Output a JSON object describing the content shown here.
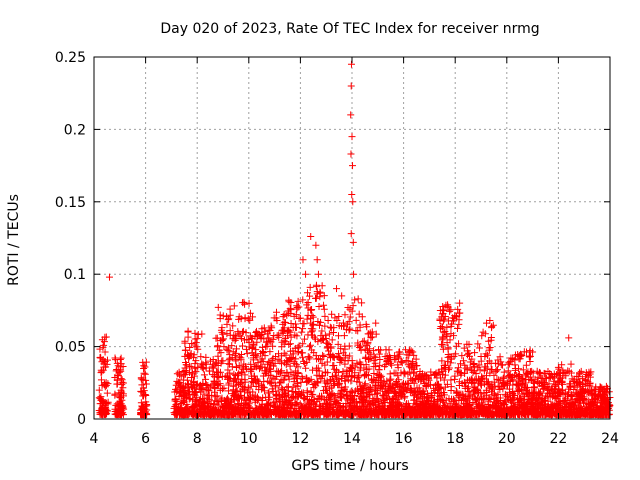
{
  "chart_data": {
    "type": "scatter",
    "title": "Day 020 of 2023, Rate Of TEC Index for receiver nrmg",
    "xlabel": "GPS time / hours",
    "ylabel": "ROTI / TECUs",
    "xlim": [
      4,
      24
    ],
    "ylim": [
      0,
      0.25
    ],
    "xticks": [
      "4",
      "6",
      "8",
      "10",
      "12",
      "14",
      "16",
      "18",
      "20",
      "22",
      "24"
    ],
    "yticks": [
      "0",
      "0.05",
      "0.1",
      "0.15",
      "0.2",
      "0.25"
    ],
    "grid": true,
    "marker": "+",
    "series_color": "#ff0000",
    "notable_points": [
      {
        "x": 4.6,
        "y": 0.098
      },
      {
        "x": 13.98,
        "y": 0.245
      },
      {
        "x": 13.97,
        "y": 0.23
      },
      {
        "x": 13.95,
        "y": 0.21
      },
      {
        "x": 14.0,
        "y": 0.195
      },
      {
        "x": 13.96,
        "y": 0.183
      },
      {
        "x": 14.02,
        "y": 0.175
      },
      {
        "x": 13.99,
        "y": 0.155
      },
      {
        "x": 14.03,
        "y": 0.15
      },
      {
        "x": 13.97,
        "y": 0.128
      },
      {
        "x": 14.05,
        "y": 0.122
      },
      {
        "x": 14.06,
        "y": 0.1
      },
      {
        "x": 12.4,
        "y": 0.126
      },
      {
        "x": 12.6,
        "y": 0.12
      },
      {
        "x": 12.65,
        "y": 0.11
      },
      {
        "x": 12.7,
        "y": 0.1
      },
      {
        "x": 12.1,
        "y": 0.11
      },
      {
        "x": 12.2,
        "y": 0.1
      },
      {
        "x": 13.4,
        "y": 0.09
      },
      {
        "x": 13.6,
        "y": 0.085
      },
      {
        "x": 22.4,
        "y": 0.056
      }
    ],
    "clusters": [
      {
        "x": [
          4.2,
          4.55
        ],
        "ymax": 0.054
      },
      {
        "x": [
          4.8,
          5.15
        ],
        "ymax": 0.04
      },
      {
        "x": [
          5.8,
          6.05
        ],
        "ymax": 0.04
      },
      {
        "x": [
          7.1,
          7.5
        ],
        "ymax": 0.03
      },
      {
        "x": [
          7.5,
          8.2
        ],
        "ymax": 0.062
      },
      {
        "x": [
          8.2,
          8.7
        ],
        "ymax": 0.04
      },
      {
        "x": [
          8.7,
          9.4
        ],
        "ymax": 0.075
      },
      {
        "x": [
          9.4,
          10.2
        ],
        "ymax": 0.078
      },
      {
        "x": [
          10.2,
          10.8
        ],
        "ymax": 0.06
      },
      {
        "x": [
          10.8,
          11.4
        ],
        "ymax": 0.075
      },
      {
        "x": [
          11.4,
          12.2
        ],
        "ymax": 0.08
      },
      {
        "x": [
          12.2,
          13.0
        ],
        "ymax": 0.09
      },
      {
        "x": [
          13.0,
          13.8
        ],
        "ymax": 0.07
      },
      {
        "x": [
          13.8,
          14.4
        ],
        "ymax": 0.08
      },
      {
        "x": [
          14.4,
          15.0
        ],
        "ymax": 0.065
      },
      {
        "x": [
          15.0,
          15.8
        ],
        "ymax": 0.045
      },
      {
        "x": [
          15.8,
          16.6
        ],
        "ymax": 0.045
      },
      {
        "x": [
          16.6,
          17.4
        ],
        "ymax": 0.03
      },
      {
        "x": [
          17.4,
          18.3
        ],
        "ymax": 0.078
      },
      {
        "x": [
          18.3,
          19.0
        ],
        "ymax": 0.05
      },
      {
        "x": [
          19.0,
          19.5
        ],
        "ymax": 0.067
      },
      {
        "x": [
          19.5,
          20.3
        ],
        "ymax": 0.04
      },
      {
        "x": [
          20.3,
          21.0
        ],
        "ymax": 0.045
      },
      {
        "x": [
          21.0,
          22.0
        ],
        "ymax": 0.03
      },
      {
        "x": [
          22.0,
          22.5
        ],
        "ymax": 0.035
      },
      {
        "x": [
          22.5,
          23.3
        ],
        "ymax": 0.03
      },
      {
        "x": [
          23.3,
          24.0
        ],
        "ymax": 0.02
      }
    ]
  }
}
